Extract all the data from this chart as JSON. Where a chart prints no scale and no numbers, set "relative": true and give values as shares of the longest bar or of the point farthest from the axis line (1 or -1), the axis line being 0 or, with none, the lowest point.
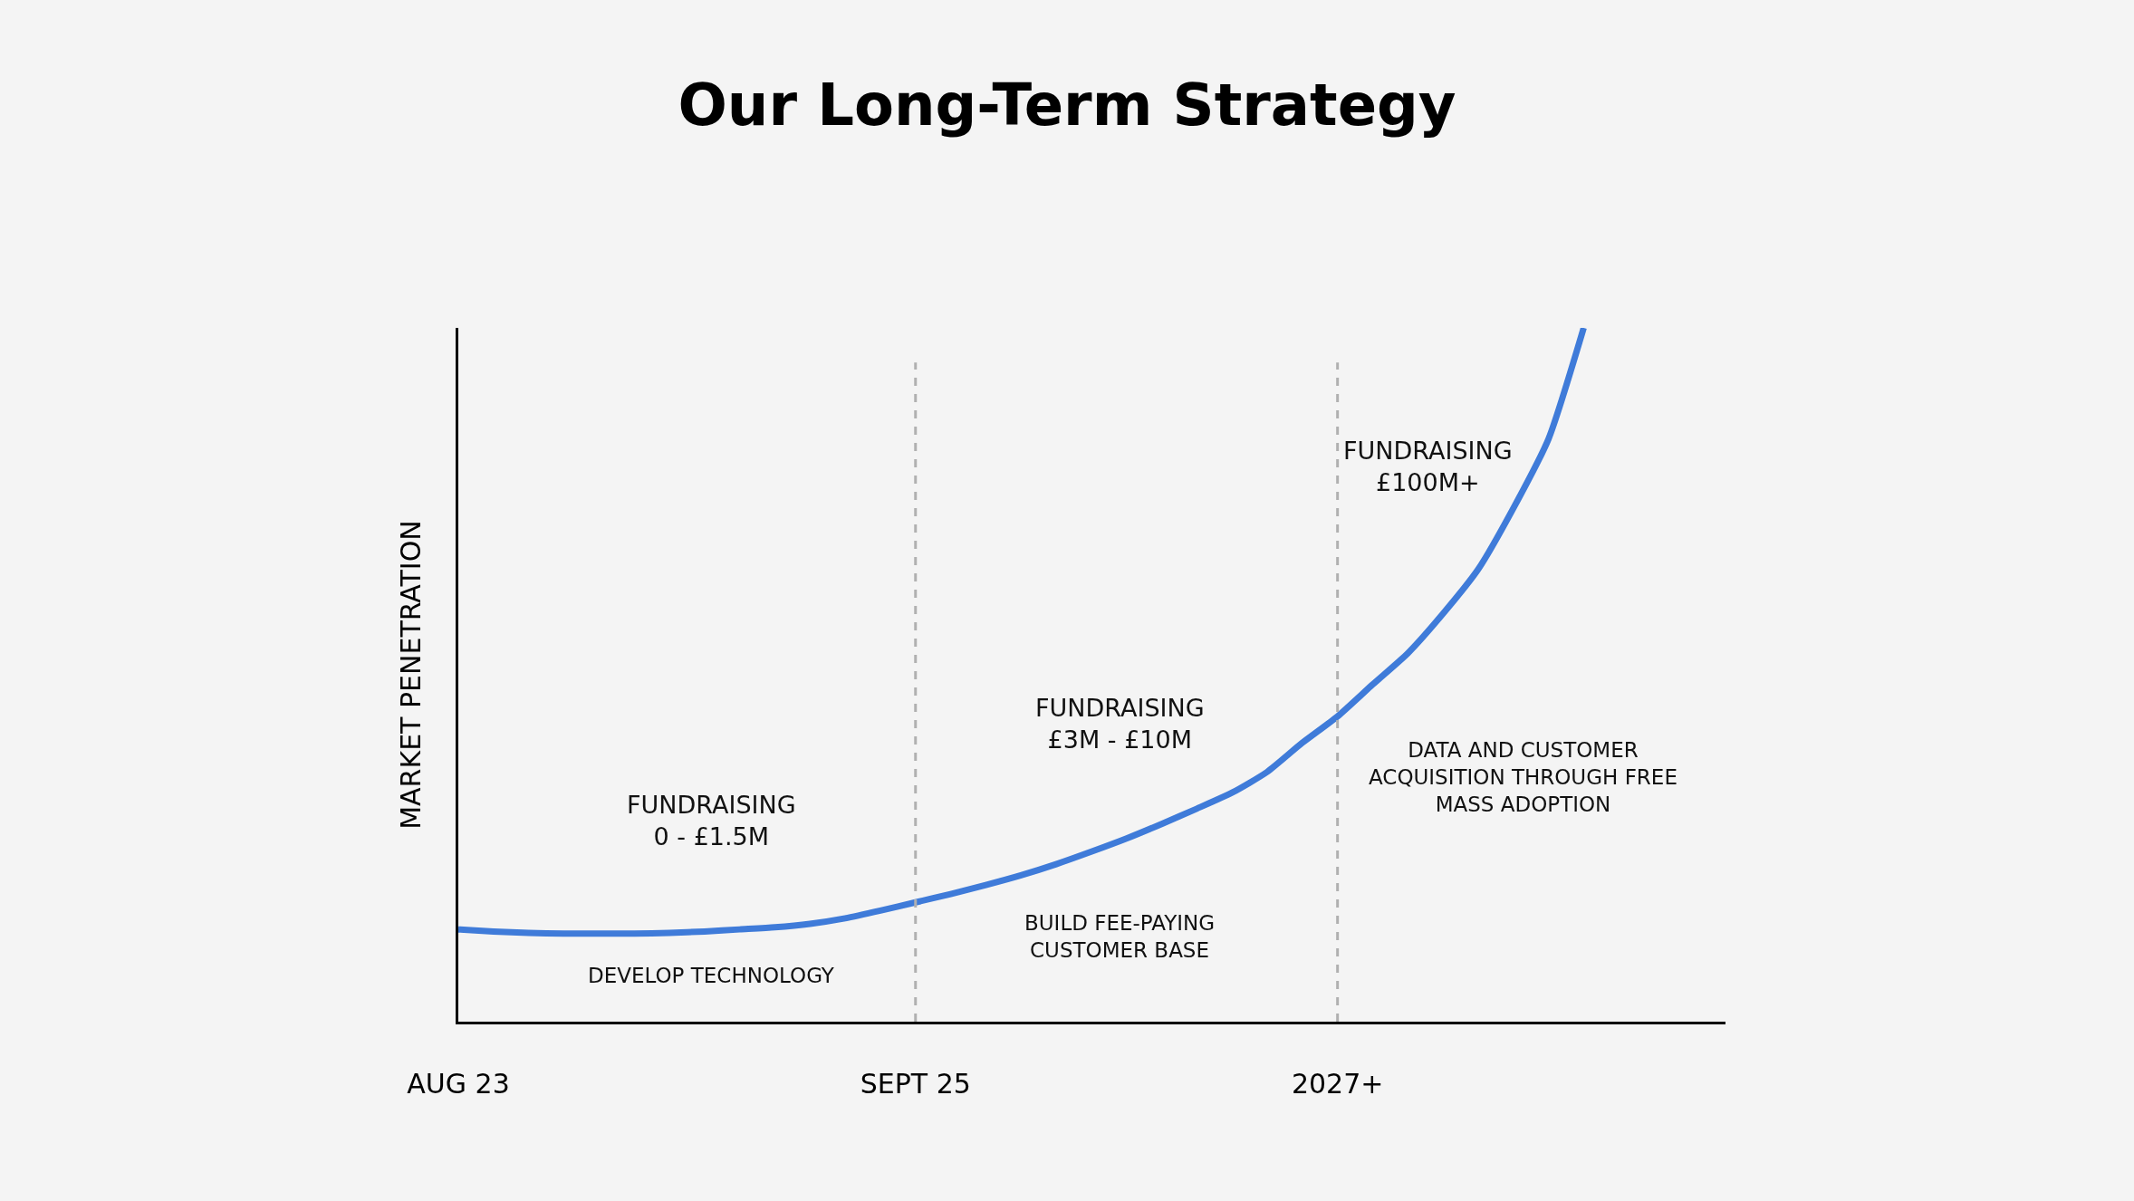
{
  "chart_data": {
    "type": "line",
    "title": "Our Long-Term Strategy",
    "ylabel": "MARKET PENETRATION",
    "relative": true,
    "tick_labels": "x",
    "grid": false,
    "marker": "none",
    "line_style": "solid",
    "categories": [
      "AUG 23",
      null,
      null,
      null,
      null,
      null,
      null,
      null,
      null,
      null,
      null,
      null,
      null,
      "SEPT 25",
      null,
      null,
      null,
      null,
      null,
      null,
      null,
      null,
      null,
      null,
      null,
      "2027+",
      null,
      null,
      null,
      null,
      null,
      null,
      null
    ],
    "series": [
      {
        "color": "#3f7bd9",
        "values": [
          0.133,
          0.13,
          0.128,
          0.127,
          0.127,
          0.127,
          0.128,
          0.13,
          0.133,
          0.136,
          0.141,
          0.149,
          0.16,
          0.172,
          0.184,
          0.197,
          0.211,
          0.227,
          0.245,
          0.264,
          0.285,
          0.307,
          0.33,
          0.36,
          0.402,
          0.44,
          0.486,
          0.531,
          0.588,
          0.652,
          0.74,
          0.84,
          1
        ]
      }
    ],
    "ref_lines": [
      {
        "axis": "x",
        "value": "SEPT 25",
        "color": "#b0b0b0",
        "line_style": "dashed"
      },
      {
        "axis": "x",
        "value": "2027+",
        "color": "#b0b0b0",
        "line_style": "dashed"
      }
    ],
    "annotations": [
      "FUNDRAISING\n0 - £1.5M",
      "DEVELOP TECHNOLOGY",
      "FUNDRAISING\n£3M - £10M",
      "BUILD FEE-PAYING\nCUSTOMER BASE",
      "FUNDRAISING\n£100M+",
      "DATA AND CUSTOMER\nACQUISITION THROUGH FREE\nMASS ADOPTION"
    ]
  }
}
